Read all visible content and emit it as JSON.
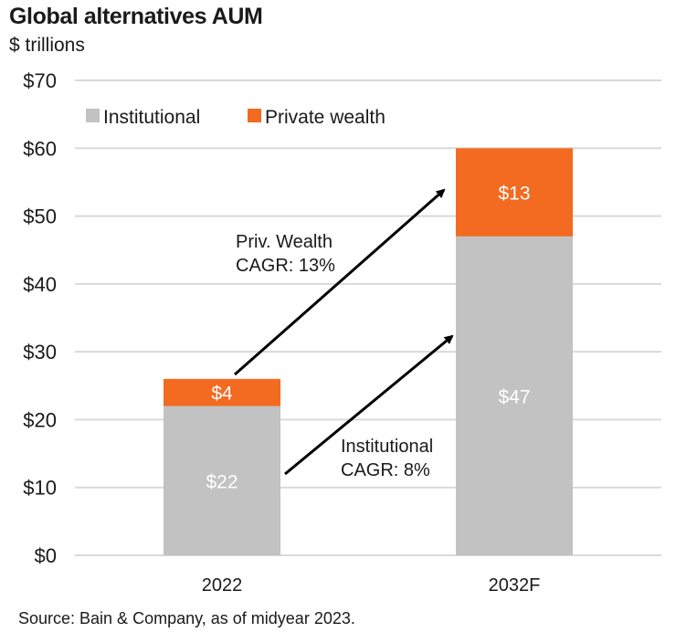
{
  "chart_data": {
    "type": "bar",
    "stacked": true,
    "title": "Global alternatives AUM",
    "subtitle": "$ trillions",
    "categories": [
      "2022",
      "2032F"
    ],
    "series": [
      {
        "name": "Institutional",
        "values": [
          22,
          47
        ],
        "labels": [
          "$22",
          "$47"
        ],
        "color": "#c2c2c2"
      },
      {
        "name": "Private wealth",
        "values": [
          4,
          13
        ],
        "labels": [
          "$4",
          "$13"
        ],
        "color": "#f26b21"
      }
    ],
    "ylim": [
      0,
      70
    ],
    "yticks": [
      0,
      10,
      20,
      30,
      40,
      50,
      60,
      70
    ],
    "ytick_labels": [
      "$0",
      "$10",
      "$20",
      "$30",
      "$40",
      "$50",
      "$60",
      "$70"
    ],
    "grid": true,
    "legend": "top-left",
    "annotations": [
      {
        "lines": [
          "Priv. Wealth",
          "CAGR: 13%"
        ]
      },
      {
        "lines": [
          "Institutional",
          "CAGR: 8%"
        ]
      }
    ]
  },
  "source": "Source: Bain & Company, as of midyear 2023."
}
